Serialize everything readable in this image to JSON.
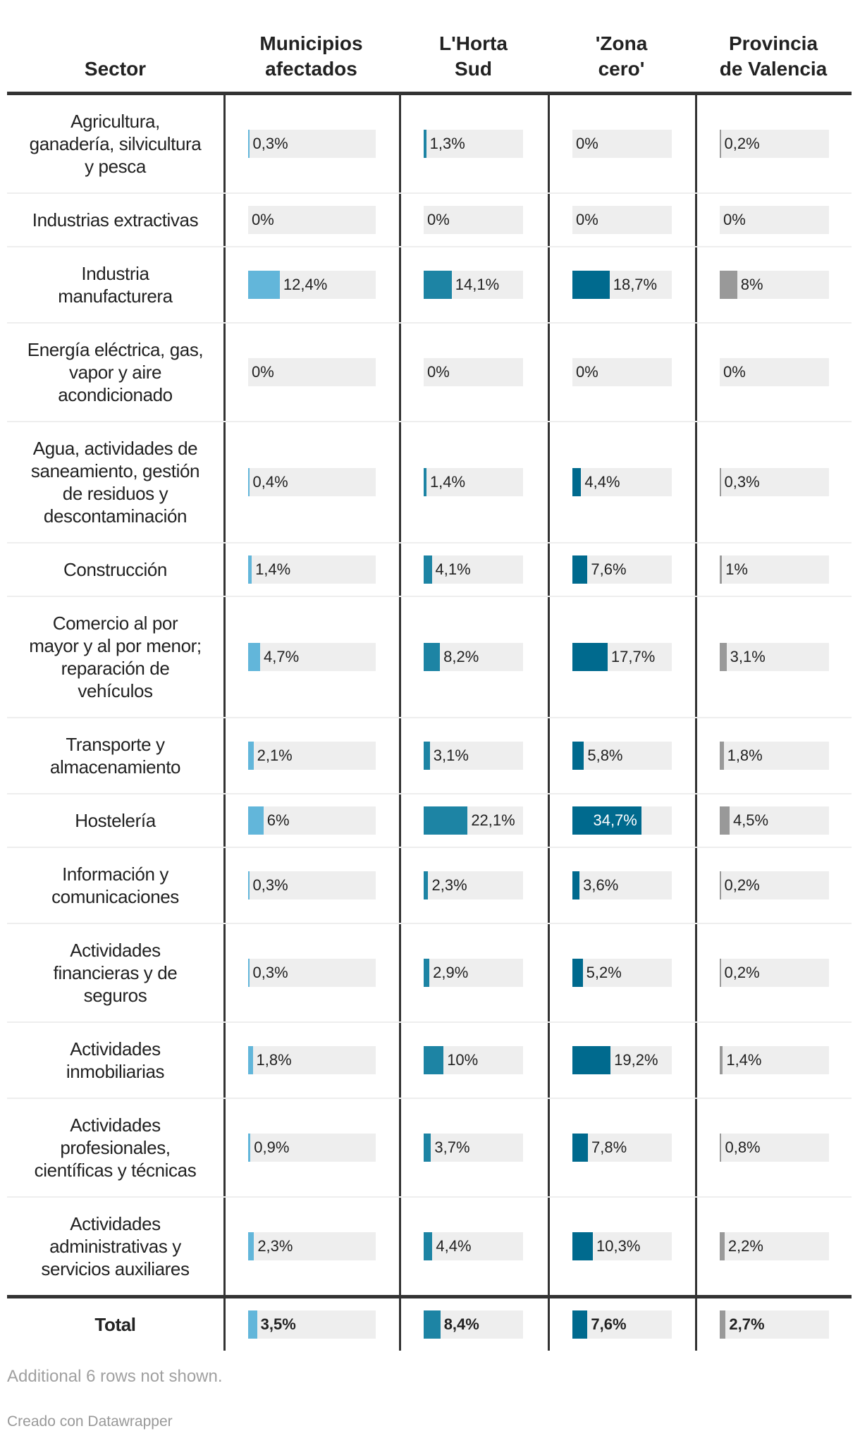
{
  "chart_data": {
    "type": "table",
    "columns": [
      "Sector",
      "Municipios afectados",
      "L'Horta Sud",
      "'Zona cero'",
      "Provincia de Valencia"
    ],
    "bar_domain": [
      0,
      50
    ],
    "colors": [
      "#62b6da",
      "#1d84a4",
      "#006a8e",
      "#999999"
    ],
    "bar_background": "#eeeeee",
    "rows": [
      {
        "sector": "Agricultura, ganadería, silvicultura y pesca",
        "values": [
          0.3,
          1.3,
          0,
          0.2
        ],
        "labels": [
          "0,3%",
          "1,3%",
          "0%",
          "0,2%"
        ]
      },
      {
        "sector": "Industrias extractivas",
        "values": [
          0,
          0,
          0,
          0
        ],
        "labels": [
          "0%",
          "0%",
          "0%",
          "0%"
        ]
      },
      {
        "sector": "Industria manufacturera",
        "values": [
          12.4,
          14.1,
          18.7,
          8
        ],
        "labels": [
          "12,4%",
          "14,1%",
          "18,7%",
          "8%"
        ]
      },
      {
        "sector": "Energía eléctrica, gas, vapor y aire acondicionado",
        "values": [
          0,
          0,
          0,
          0
        ],
        "labels": [
          "0%",
          "0%",
          "0%",
          "0%"
        ]
      },
      {
        "sector": "Agua, actividades de saneamiento, gestión de residuos y descontaminación",
        "values": [
          0.4,
          1.4,
          4.4,
          0.3
        ],
        "labels": [
          "0,4%",
          "1,4%",
          "4,4%",
          "0,3%"
        ]
      },
      {
        "sector": "Construcción",
        "values": [
          1.4,
          4.1,
          7.6,
          1
        ],
        "labels": [
          "1,4%",
          "4,1%",
          "7,6%",
          "1%"
        ]
      },
      {
        "sector": "Comercio al por mayor y al por menor; reparación de vehículos",
        "values": [
          4.7,
          8.2,
          17.7,
          3.1
        ],
        "labels": [
          "4,7%",
          "8,2%",
          "17,7%",
          "3,1%"
        ]
      },
      {
        "sector": "Transporte y almacenamiento",
        "values": [
          2.1,
          3.1,
          5.8,
          1.8
        ],
        "labels": [
          "2,1%",
          "3,1%",
          "5,8%",
          "1,8%"
        ]
      },
      {
        "sector": "Hostelería",
        "values": [
          6,
          22.1,
          34.7,
          4.5
        ],
        "labels": [
          "6%",
          "22,1%",
          "34,7%",
          "4,5%"
        ]
      },
      {
        "sector": "Información y comunicaciones",
        "values": [
          0.3,
          2.3,
          3.6,
          0.2
        ],
        "labels": [
          "0,3%",
          "2,3%",
          "3,6%",
          "0,2%"
        ]
      },
      {
        "sector": "Actividades financieras y de seguros",
        "values": [
          0.3,
          2.9,
          5.2,
          0.2
        ],
        "labels": [
          "0,3%",
          "2,9%",
          "5,2%",
          "0,2%"
        ]
      },
      {
        "sector": "Actividades inmobiliarias",
        "values": [
          1.8,
          10,
          19.2,
          1.4
        ],
        "labels": [
          "1,8%",
          "10%",
          "19,2%",
          "1,4%"
        ]
      },
      {
        "sector": "Actividades profesionales, científicas y técnicas",
        "values": [
          0.9,
          3.7,
          7.8,
          0.8
        ],
        "labels": [
          "0,9%",
          "3,7%",
          "7,8%",
          "0,8%"
        ]
      },
      {
        "sector": "Actividades administrativas y servicios auxiliares",
        "values": [
          2.3,
          4.4,
          10.3,
          2.2
        ],
        "labels": [
          "2,3%",
          "4,4%",
          "10,3%",
          "2,2%"
        ]
      }
    ],
    "total": {
      "sector": "Total",
      "values": [
        3.5,
        8.4,
        7.6,
        2.7
      ],
      "labels": [
        "3,5%",
        "8,4%",
        "7,6%",
        "2,7%"
      ]
    }
  },
  "header_lines": [
    [
      "Sector"
    ],
    [
      "Municipios",
      "afectados"
    ],
    [
      "L'Horta",
      "Sud"
    ],
    [
      "'Zona",
      "cero'"
    ],
    [
      "Provincia",
      "de Valencia"
    ]
  ],
  "sector_lines": [
    [
      "Agricultura,",
      "ganadería, silvicultura",
      "y pesca"
    ],
    [
      "Industrias extractivas"
    ],
    [
      "Industria",
      "manufacturera"
    ],
    [
      "Energía eléctrica, gas,",
      "vapor y aire",
      "acondicionado"
    ],
    [
      "Agua, actividades de",
      "saneamiento, gestión",
      "de residuos y",
      "descontaminación"
    ],
    [
      "Construcción"
    ],
    [
      "Comercio al por",
      "mayor y al por menor;",
      "reparación de",
      "vehículos"
    ],
    [
      "Transporte y",
      "almacenamiento"
    ],
    [
      "Hostelería"
    ],
    [
      "Información y",
      "comunicaciones"
    ],
    [
      "Actividades",
      "financieras y de",
      "seguros"
    ],
    [
      "Actividades",
      "inmobiliarias"
    ],
    [
      "Actividades",
      "profesionales,",
      "científicas y técnicas"
    ],
    [
      "Actividades",
      "administrativas y",
      "servicios auxiliares"
    ]
  ],
  "footer": {
    "note": "Additional 6 rows not shown.",
    "credit": "Creado con Datawrapper"
  }
}
